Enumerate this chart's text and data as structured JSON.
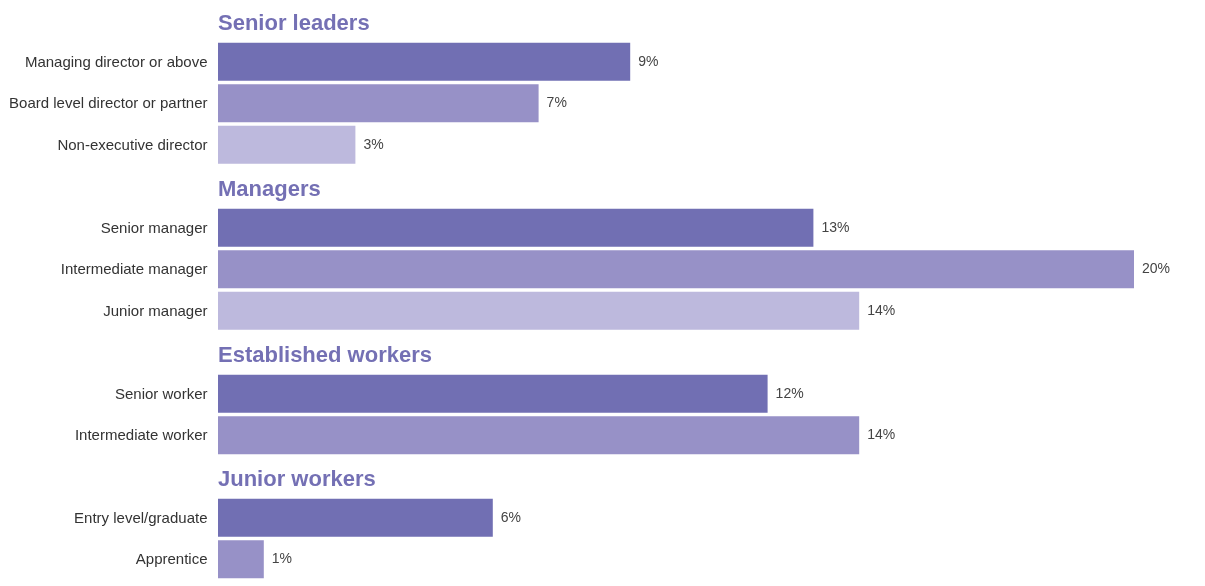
{
  "chart_data": [
    {
      "type": "bar",
      "orientation": "horizontal",
      "title": "Senior leaders",
      "categories": [
        "Managing director or above",
        "Board level director or partner",
        "Non-executive director"
      ],
      "values": [
        9,
        7,
        3
      ],
      "value_labels": [
        "9%",
        "7%",
        "3%"
      ],
      "colors": [
        "#716fb3",
        "#9791c7",
        "#bdb9dd"
      ]
    },
    {
      "type": "bar",
      "orientation": "horizontal",
      "title": "Managers",
      "categories": [
        "Senior manager",
        "Intermediate manager",
        "Junior manager"
      ],
      "values": [
        13,
        20,
        14
      ],
      "value_labels": [
        "13%",
        "20%",
        "14%"
      ],
      "colors": [
        "#716fb3",
        "#9791c7",
        "#bdb9dd"
      ]
    },
    {
      "type": "bar",
      "orientation": "horizontal",
      "title": "Established workers",
      "categories": [
        "Senior worker",
        "Intermediate worker"
      ],
      "values": [
        12,
        14
      ],
      "value_labels": [
        "12%",
        "14%"
      ],
      "colors": [
        "#716fb3",
        "#9791c7"
      ]
    },
    {
      "type": "bar",
      "orientation": "horizontal",
      "title": "Junior workers",
      "categories": [
        "Entry level/graduate",
        "Apprentice"
      ],
      "values": [
        6,
        1
      ],
      "value_labels": [
        "6%",
        "1%"
      ],
      "colors": [
        "#716fb3",
        "#9791c7"
      ]
    }
  ]
}
